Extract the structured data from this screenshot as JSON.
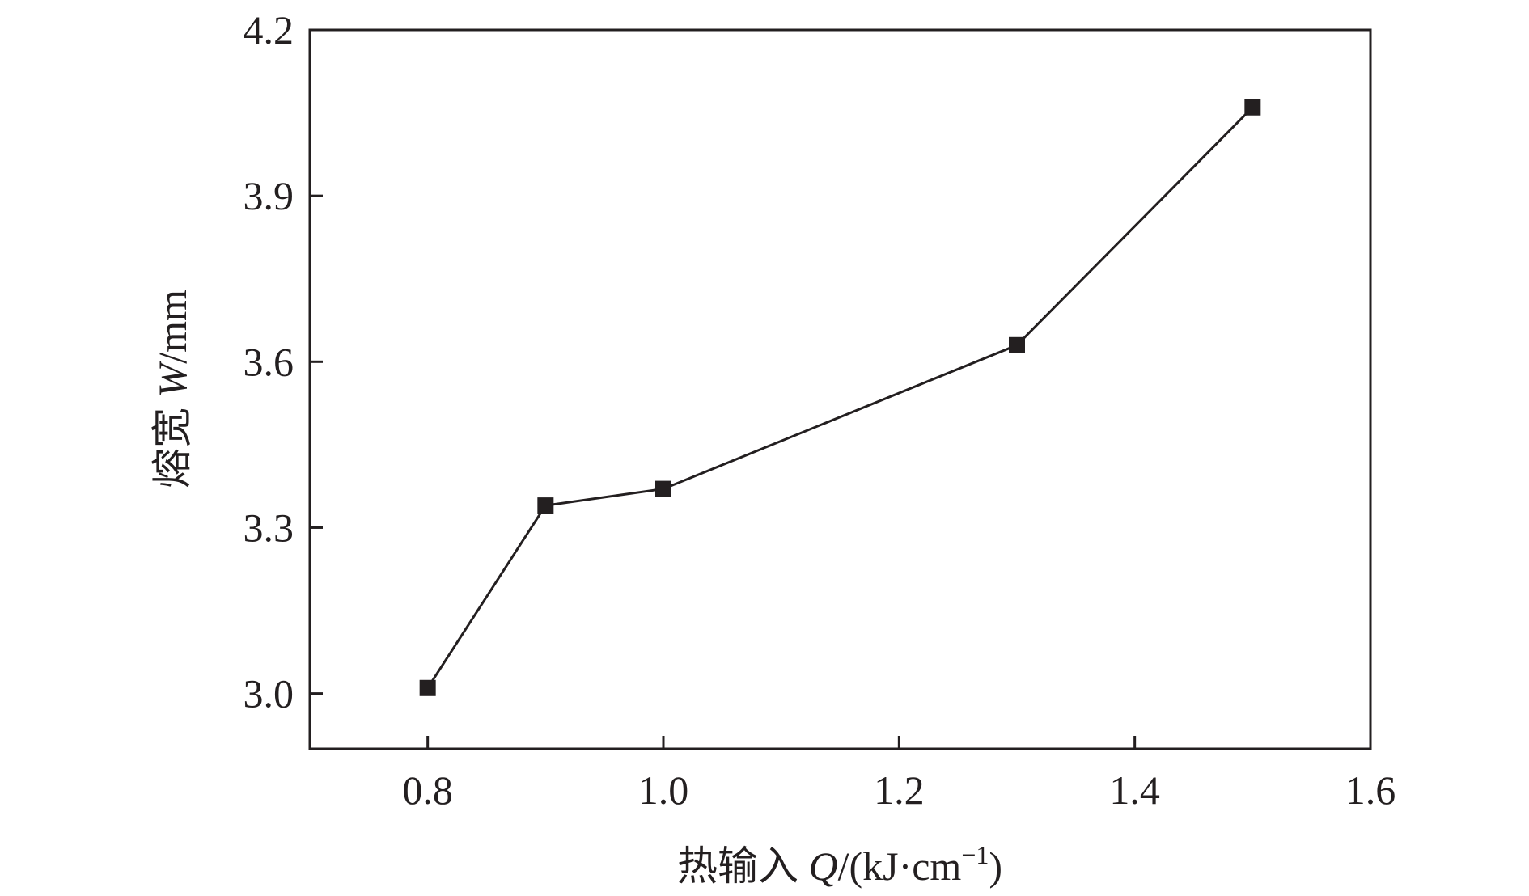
{
  "chart_data": {
    "type": "line",
    "title": "",
    "x": [
      0.8,
      0.9,
      1.0,
      1.3,
      1.5
    ],
    "series": [
      {
        "values": [
          3.01,
          3.34,
          3.37,
          3.63,
          4.06
        ]
      }
    ],
    "xlim": [
      0.7,
      1.6
    ],
    "ylim": [
      2.9,
      4.2
    ],
    "xticks": [
      0.8,
      1.0,
      1.2,
      1.4,
      1.6
    ],
    "yticks": [
      3.0,
      3.3,
      3.6,
      3.9,
      4.2
    ],
    "xtick_labels": [
      "0.8",
      "1.0",
      "1.2",
      "1.4",
      "1.6"
    ],
    "ytick_labels": [
      "3.0",
      "3.3",
      "3.6",
      "3.9",
      "4.2"
    ],
    "xlabel": {
      "prefix": "热输入 ",
      "var": "Q",
      "unit": "/(kJ·cm",
      "sup": "−1",
      "close": ")"
    },
    "ylabel": {
      "prefix": "熔宽 ",
      "var": "W",
      "unit": "/mm"
    },
    "grid": false,
    "marker": "square",
    "colors": {
      "line": "#231f20",
      "axis": "#231f20"
    }
  }
}
